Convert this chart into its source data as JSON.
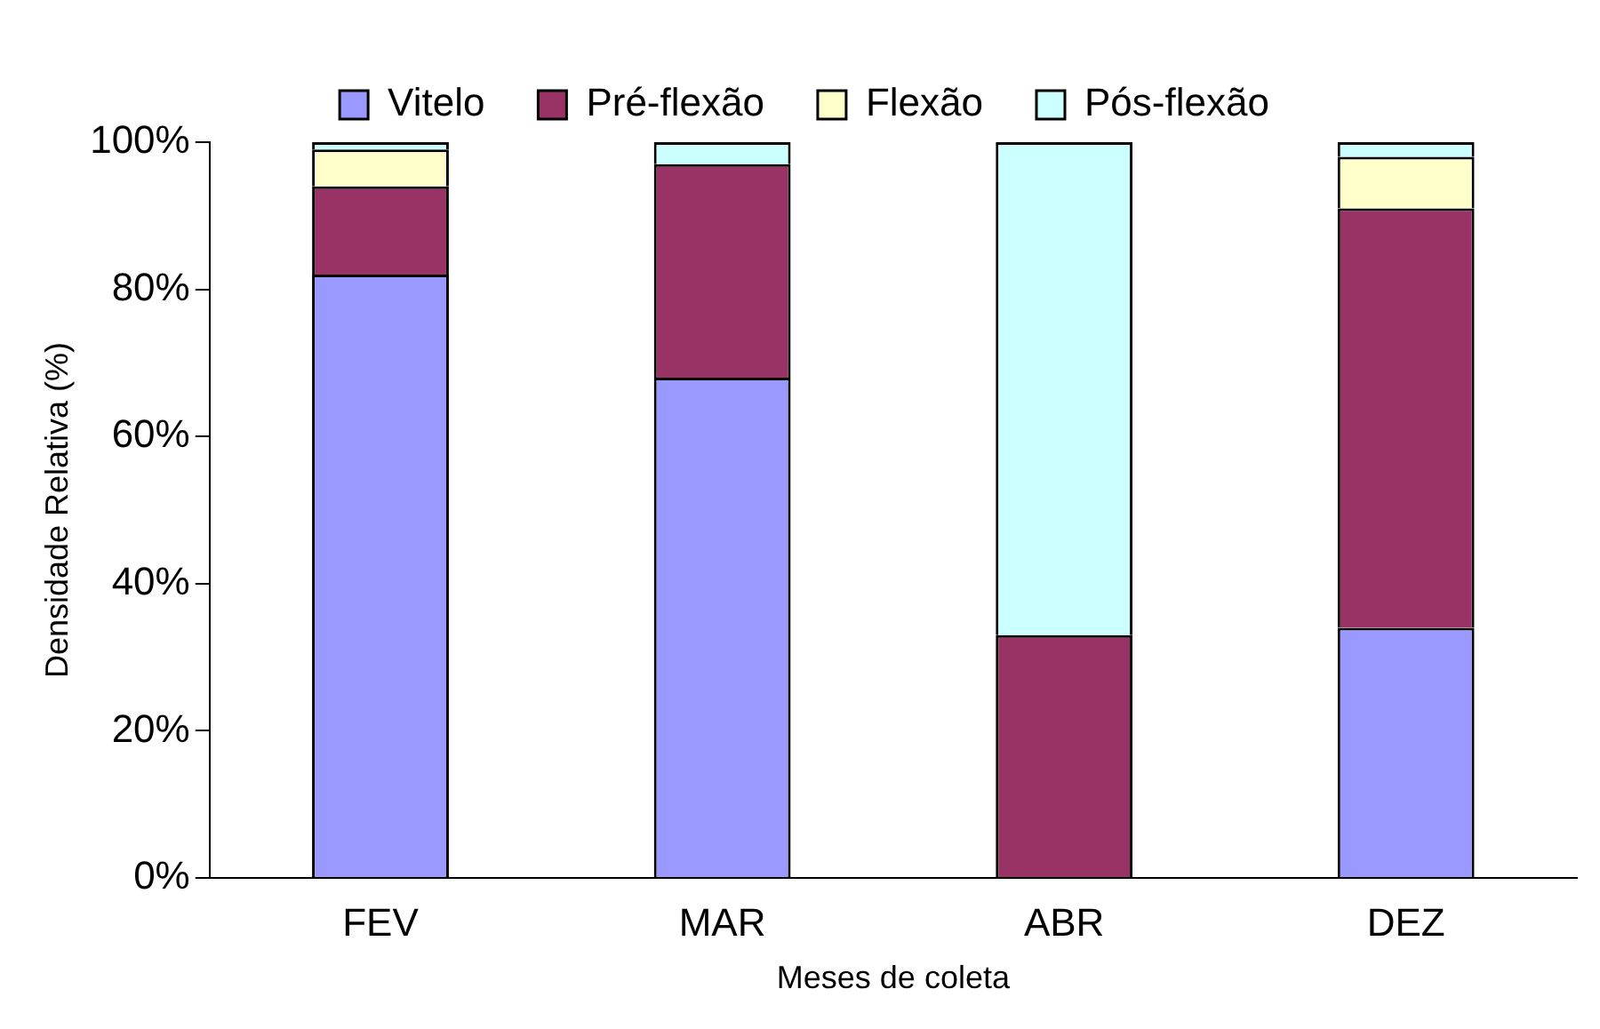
{
  "chart_data": {
    "type": "bar",
    "stacked": true,
    "xlabel": "Meses de coleta",
    "ylabel": "Densidade Relativa (%)",
    "categories": [
      "FEV",
      "MAR",
      "ABR",
      "DEZ"
    ],
    "series": [
      {
        "name": "Vitelo",
        "color": "#9999ff",
        "values": [
          82,
          68,
          0,
          34
        ]
      },
      {
        "name": "Pré-flexão",
        "color": "#993366",
        "values": [
          12,
          29,
          33,
          57
        ]
      },
      {
        "name": "Flexão",
        "color": "#ffffcc",
        "values": [
          5,
          0,
          0,
          7
        ]
      },
      {
        "name": "Pós-flexão",
        "color": "#ccffff",
        "values": [
          1,
          3,
          67,
          2
        ]
      }
    ],
    "ylim": [
      0,
      100
    ],
    "yticks": [
      {
        "value": 0,
        "label": "0%"
      },
      {
        "value": 20,
        "label": "20%"
      },
      {
        "value": 40,
        "label": "40%"
      },
      {
        "value": 60,
        "label": "60%"
      },
      {
        "value": 80,
        "label": "80%"
      },
      {
        "value": 100,
        "label": "100%"
      }
    ],
    "grid": false,
    "legend": "top"
  }
}
